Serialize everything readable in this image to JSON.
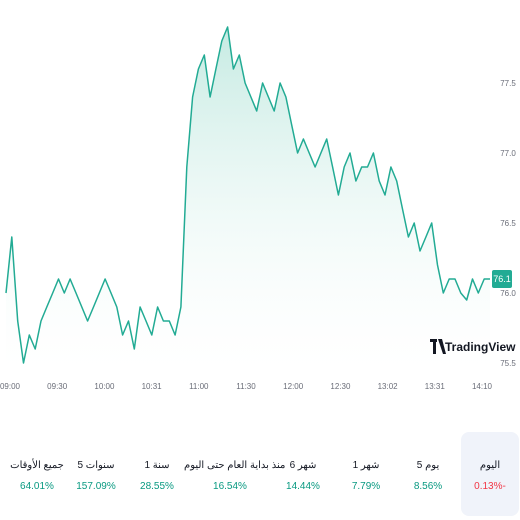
{
  "chart_data": {
    "type": "area",
    "x_ticks": [
      "09:00",
      "09:30",
      "10:00",
      "10:31",
      "11:00",
      "11:30",
      "12:00",
      "12:30",
      "13:02",
      "13:31",
      "14:10"
    ],
    "y_ticks": [
      "77.5",
      "77.0",
      "76.5",
      "76.0",
      "75.5"
    ],
    "ylim": [
      75.45,
      77.95
    ],
    "last_price": "76.1",
    "colors": {
      "line": "#22ab94",
      "fill_top": "#bfe8df",
      "badge": "#22ab94"
    },
    "values": [
      76.0,
      76.4,
      75.8,
      75.5,
      75.7,
      75.6,
      75.8,
      75.9,
      76.0,
      76.1,
      76.0,
      76.1,
      76.0,
      75.9,
      75.8,
      75.9,
      76.0,
      76.1,
      76.0,
      75.9,
      75.7,
      75.8,
      75.6,
      75.9,
      75.8,
      75.7,
      75.9,
      75.8,
      75.8,
      75.7,
      75.9,
      76.9,
      77.4,
      77.6,
      77.7,
      77.4,
      77.6,
      77.8,
      77.9,
      77.6,
      77.7,
      77.5,
      77.4,
      77.3,
      77.5,
      77.4,
      77.3,
      77.5,
      77.4,
      77.2,
      77.0,
      77.1,
      77.0,
      76.9,
      77.0,
      77.1,
      76.9,
      76.7,
      76.9,
      77.0,
      76.8,
      76.9,
      76.9,
      77.0,
      76.8,
      76.7,
      76.9,
      76.8,
      76.6,
      76.4,
      76.5,
      76.3,
      76.4,
      76.5,
      76.2,
      76.0,
      76.1,
      76.1,
      76.0,
      75.95,
      76.1,
      76.0,
      76.1,
      76.1
    ]
  },
  "watermark": {
    "logo_text": "TradingView"
  },
  "periods": [
    {
      "label": "اليوم",
      "value": "0.13%-",
      "color": "#f23645",
      "active": true
    },
    {
      "label": "5 يوم",
      "value": "8.56%",
      "color": "#089981"
    },
    {
      "label": "1 شهر",
      "value": "7.79%",
      "color": "#089981"
    },
    {
      "label": "6 شهر",
      "value": "14.44%",
      "color": "#089981"
    },
    {
      "label": "منذ بداية العام حتى اليوم",
      "value": "16.54%",
      "color": "#089981"
    },
    {
      "label": "1 سنة",
      "value": "28.55%",
      "color": "#089981"
    },
    {
      "label": "5 سنوات",
      "value": "157.09%",
      "color": "#089981"
    },
    {
      "label": "جميع الأوقات",
      "value": "64.01%",
      "color": "#089981"
    }
  ]
}
